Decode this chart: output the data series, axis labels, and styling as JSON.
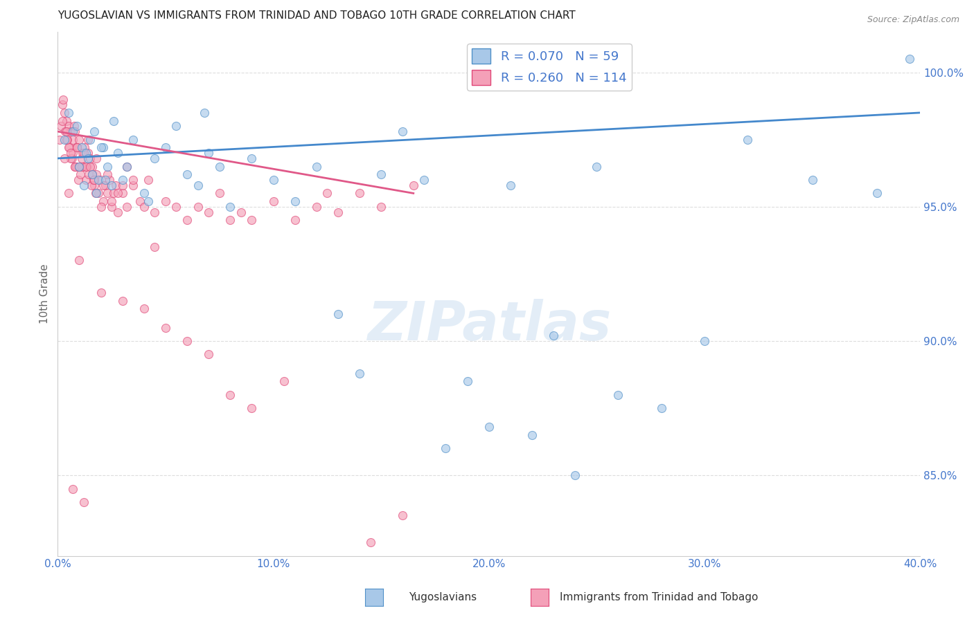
{
  "title": "YUGOSLAVIAN VS IMMIGRANTS FROM TRINIDAD AND TOBAGO 10TH GRADE CORRELATION CHART",
  "source": "Source: ZipAtlas.com",
  "ylabel": "10th Grade",
  "xlim": [
    0.0,
    40.0
  ],
  "ylim": [
    82.0,
    101.5
  ],
  "yticks": [
    85.0,
    90.0,
    95.0,
    100.0
  ],
  "xticks": [
    0.0,
    10.0,
    20.0,
    30.0,
    40.0
  ],
  "blue_R": 0.07,
  "blue_N": 59,
  "pink_R": 0.26,
  "pink_N": 114,
  "blue_color": "#a8c8e8",
  "pink_color": "#f4a0b8",
  "blue_edge_color": "#5090c8",
  "pink_edge_color": "#e04878",
  "blue_line_color": "#4488cc",
  "pink_line_color": "#e05888",
  "legend_label_blue": "Yugoslavians",
  "legend_label_pink": "Immigrants from Trinidad and Tobago",
  "watermark": "ZIPatlas",
  "background_color": "#ffffff",
  "grid_color": "#dddddd",
  "title_color": "#222222",
  "title_fontsize": 11,
  "axis_label_color": "#4477cc",
  "blue_scatter_x": [
    0.3,
    0.5,
    0.7,
    0.9,
    1.1,
    1.3,
    1.5,
    1.7,
    1.9,
    2.1,
    2.3,
    2.5,
    2.8,
    3.0,
    3.5,
    4.0,
    4.5,
    5.0,
    5.5,
    6.0,
    6.5,
    7.0,
    7.5,
    8.0,
    9.0,
    10.0,
    11.0,
    12.0,
    13.0,
    14.0,
    15.0,
    16.0,
    17.0,
    18.0,
    19.0,
    20.0,
    21.0,
    22.0,
    23.0,
    24.0,
    25.0,
    26.0,
    28.0,
    30.0,
    32.0,
    35.0,
    38.0,
    39.5,
    1.0,
    1.2,
    1.4,
    1.6,
    1.8,
    2.0,
    2.2,
    2.6,
    3.2,
    4.2,
    6.8
  ],
  "blue_scatter_y": [
    97.5,
    98.5,
    97.8,
    98.0,
    97.2,
    97.0,
    97.5,
    97.8,
    96.0,
    97.2,
    96.5,
    95.8,
    97.0,
    96.0,
    97.5,
    95.5,
    96.8,
    97.2,
    98.0,
    96.2,
    95.8,
    97.0,
    96.5,
    95.0,
    96.8,
    96.0,
    95.2,
    96.5,
    91.0,
    88.8,
    96.2,
    97.8,
    96.0,
    86.0,
    88.5,
    86.8,
    95.8,
    86.5,
    90.2,
    85.0,
    96.5,
    88.0,
    87.5,
    90.0,
    97.5,
    96.0,
    95.5,
    100.5,
    96.5,
    95.8,
    96.8,
    96.2,
    95.5,
    97.2,
    96.0,
    98.2,
    96.5,
    95.2,
    98.5
  ],
  "pink_scatter_x": [
    0.1,
    0.2,
    0.3,
    0.4,
    0.5,
    0.6,
    0.7,
    0.8,
    0.9,
    1.0,
    1.1,
    1.2,
    1.3,
    1.4,
    1.5,
    1.6,
    1.7,
    1.8,
    1.9,
    2.0,
    2.1,
    2.2,
    2.3,
    2.4,
    2.5,
    2.7,
    2.8,
    3.0,
    3.2,
    3.5,
    3.8,
    4.0,
    4.5,
    5.0,
    5.5,
    6.0,
    6.5,
    7.0,
    7.5,
    8.0,
    8.5,
    9.0,
    10.0,
    11.0,
    12.0,
    13.0,
    14.0,
    15.0,
    16.5,
    0.15,
    0.25,
    0.35,
    0.45,
    0.55,
    0.65,
    0.75,
    0.85,
    0.95,
    1.05,
    1.15,
    1.25,
    1.35,
    1.45,
    1.55,
    1.65,
    1.75,
    2.6,
    3.2,
    4.2,
    1.8,
    2.3,
    0.8,
    1.2,
    0.6,
    0.9,
    1.1,
    0.7,
    1.3,
    0.5,
    0.4,
    2.1,
    1.6,
    0.3,
    0.6,
    1.0,
    1.4,
    2.8,
    3.5,
    0.2,
    1.7,
    0.8,
    2.5,
    3.0,
    0.4,
    1.5,
    2.0,
    0.9,
    4.5,
    1.0,
    2.0,
    3.0,
    4.0,
    5.0,
    6.0,
    7.0,
    8.0,
    9.0,
    10.5,
    12.5,
    14.5,
    16.0,
    0.7,
    1.2,
    0.5
  ],
  "pink_scatter_y": [
    97.5,
    98.8,
    98.5,
    98.2,
    98.0,
    97.8,
    97.5,
    96.5,
    97.2,
    97.5,
    96.8,
    96.5,
    96.0,
    97.0,
    96.8,
    96.5,
    95.8,
    96.2,
    95.5,
    96.0,
    95.2,
    95.8,
    95.5,
    96.0,
    95.0,
    95.8,
    94.8,
    95.5,
    95.0,
    95.8,
    95.2,
    95.0,
    94.8,
    95.2,
    95.0,
    94.5,
    95.0,
    94.8,
    95.5,
    94.5,
    94.8,
    94.5,
    95.2,
    94.5,
    95.0,
    94.8,
    95.5,
    95.0,
    95.8,
    98.0,
    99.0,
    97.8,
    97.5,
    97.2,
    96.8,
    98.0,
    96.5,
    96.0,
    96.2,
    97.0,
    97.2,
    96.5,
    96.2,
    95.8,
    96.0,
    95.5,
    95.5,
    96.5,
    96.0,
    96.8,
    96.2,
    96.5,
    97.0,
    96.8,
    97.2,
    96.5,
    97.0,
    96.5,
    97.2,
    97.5,
    95.8,
    96.2,
    96.8,
    97.0,
    96.5,
    97.5,
    95.5,
    96.0,
    98.2,
    96.0,
    97.8,
    95.2,
    95.8,
    97.8,
    96.5,
    95.0,
    97.2,
    93.5,
    93.0,
    91.8,
    91.5,
    91.2,
    90.5,
    90.0,
    89.5,
    88.0,
    87.5,
    88.5,
    95.5,
    82.5,
    83.5,
    84.5,
    84.0,
    95.5
  ],
  "blue_trend_x": [
    0.0,
    40.0
  ],
  "blue_trend_y": [
    96.8,
    98.5
  ],
  "pink_trend_x": [
    0.0,
    16.5
  ],
  "pink_trend_y": [
    97.8,
    95.5
  ]
}
